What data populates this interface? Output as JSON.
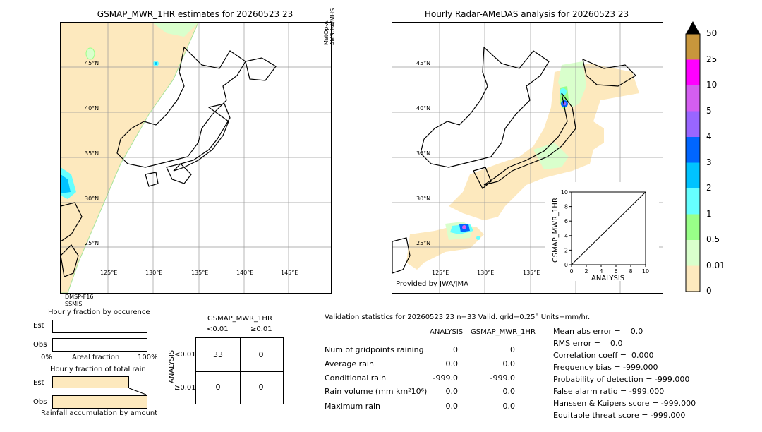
{
  "left_map": {
    "title": "GSMAP_MWR_1HR estimates for 20260523 23",
    "side_label": "MetOp-A AMSU-A/MHS",
    "bottom_label_1": "DMSP-F16",
    "bottom_label_2": "SSMIS",
    "lat_labels": [
      "45°N",
      "40°N",
      "35°N",
      "30°N",
      "25°N"
    ],
    "lon_labels": [
      "125°E",
      "130°E",
      "135°E",
      "140°E",
      "145°E"
    ]
  },
  "right_map": {
    "title": "Hourly Radar-AMeDAS analysis for 20260523 23",
    "credit": "Provided by JWA/JMA",
    "lat_labels": [
      "45°N",
      "40°N",
      "35°N",
      "30°N",
      "25°N"
    ],
    "lon_labels": [
      "125°E",
      "130°E",
      "135°E"
    ]
  },
  "scatter_inset": {
    "xlabel": "ANALYSIS",
    "ylabel": "GSMAP_MWR_1HR",
    "ticks": [
      "0",
      "2",
      "4",
      "6",
      "8",
      "10"
    ]
  },
  "colorbar": {
    "labels": [
      "50",
      "25",
      "10",
      "5",
      "4",
      "3",
      "2",
      "1",
      "0.5",
      "0.01",
      "0"
    ],
    "colors": [
      "#c8963c",
      "#ff00ff",
      "#d45ef0",
      "#9966ff",
      "#0066ff",
      "#00c3ff",
      "#66ffff",
      "#99ff88",
      "#d9ffcc",
      "#fde9be"
    ],
    "top_arrow_color": "#000000"
  },
  "fraction_occurrence": {
    "title": "Hourly fraction by occurence",
    "row1": "Est",
    "row2": "Obs",
    "axis_left": "0%",
    "axis_mid": "Areal fraction",
    "axis_right": "100%",
    "est_fraction": 0.0,
    "obs_fraction": 0.0
  },
  "fraction_total": {
    "title": "Hourly fraction of total rain",
    "row1": "Est",
    "row2": "Obs",
    "footer": "Rainfall accumulation by amount",
    "est_fraction": 0.82,
    "obs_fraction": 1.0
  },
  "contingency": {
    "title": "GSMAP_MWR_1HR",
    "col1": "<0.01",
    "col2": "≥0.01",
    "row_axis": "ANALYSIS",
    "row1": "<0.01",
    "row2": "≥0.01",
    "cells": [
      "33",
      "0",
      "0",
      "0"
    ]
  },
  "validation": {
    "header": "Validation statistics for 20260523 23  n=33 Valid. grid=0.25° Units=mm/hr.",
    "col_analysis": "ANALYSIS",
    "col_gsmap": "GSMAP_MWR_1HR",
    "rows": [
      {
        "label": "Num of gridpoints raining",
        "a": "0",
        "g": "0"
      },
      {
        "label": "Average rain",
        "a": "0.0",
        "g": "0.0"
      },
      {
        "label": "Conditional rain",
        "a": "-999.0",
        "g": "-999.0"
      },
      {
        "label": "Rain volume (mm km²10⁶)",
        "a": "0.0",
        "g": "0.0"
      },
      {
        "label": "Maximum rain",
        "a": "0.0",
        "g": "0.0"
      }
    ],
    "scores": [
      "Mean abs error =    0.0",
      "RMS error =    0.0",
      "Correlation coeff =  0.000",
      "Frequency bias = -999.000",
      "Probability of detection = -999.000",
      "False alarm ratio = -999.000",
      "Hanssen & Kuipers score = -999.000",
      "Equitable threat score = -999.000"
    ]
  }
}
